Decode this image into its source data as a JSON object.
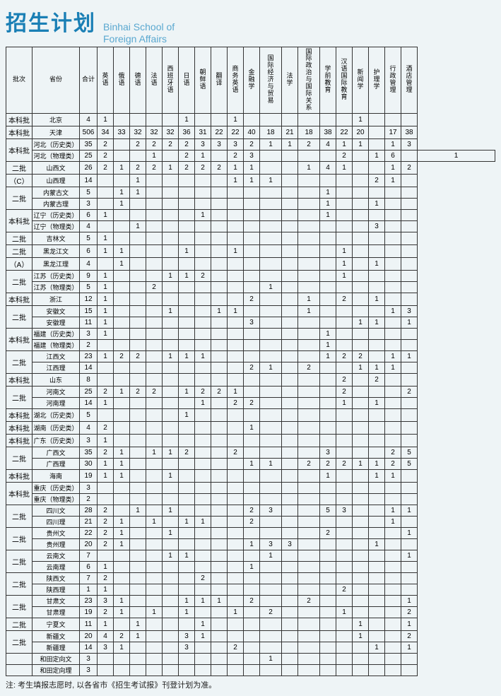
{
  "title_cn": "招生计划",
  "title_en_line1": "Binhai School of",
  "title_en_line2": "Foreign Affairs",
  "footnote": "注: 考生填报志愿时, 以各省市《招生考试报》刊登计划为准。",
  "columns": [
    {
      "key": "batch",
      "label": "批次",
      "cls": "col-batch"
    },
    {
      "key": "prov",
      "label": "省份",
      "cls": "col-prov"
    },
    {
      "key": "total",
      "label": "合计",
      "cls": "col-total"
    },
    {
      "key": "m0",
      "label": "英语",
      "cls": "col-major"
    },
    {
      "key": "m1",
      "label": "俄语",
      "cls": "col-major"
    },
    {
      "key": "m2",
      "label": "德语",
      "cls": "col-major"
    },
    {
      "key": "m3",
      "label": "法语",
      "cls": "col-major"
    },
    {
      "key": "m4",
      "label": "西班牙语",
      "cls": "col-major"
    },
    {
      "key": "m5",
      "label": "日语",
      "cls": "col-major"
    },
    {
      "key": "m6",
      "label": "朝鲜语",
      "cls": "col-major"
    },
    {
      "key": "m7",
      "label": "翻译",
      "cls": "col-major"
    },
    {
      "key": "m8",
      "label": "商务英语",
      "cls": "col-major"
    },
    {
      "key": "m9",
      "label": "金融学",
      "cls": "col-major"
    },
    {
      "key": "m10",
      "label": "国际经济与贸易",
      "cls": "col-major-wide"
    },
    {
      "key": "m11",
      "label": "法学",
      "cls": "col-major"
    },
    {
      "key": "m12",
      "label": "国际政治与国际关系",
      "cls": "col-major-wide"
    },
    {
      "key": "m13",
      "label": "学前教育",
      "cls": "col-major"
    },
    {
      "key": "m14",
      "label": "汉语国际教育",
      "cls": "col-major"
    },
    {
      "key": "m15",
      "label": "新闻学",
      "cls": "col-major"
    },
    {
      "key": "m16",
      "label": "护理学",
      "cls": "col-major"
    },
    {
      "key": "m17",
      "label": "行政管理",
      "cls": "col-major"
    },
    {
      "key": "m18",
      "label": "酒店管理",
      "cls": "col-major"
    }
  ],
  "rows": [
    {
      "batch": "本科批",
      "prov": "北京",
      "total": "4",
      "v": [
        "1",
        "",
        "",
        "",
        "",
        "1",
        "",
        "",
        "1",
        "",
        "",
        "",
        "",
        "",
        "",
        "1",
        "",
        "",
        ""
      ]
    },
    {
      "batch": "本科批",
      "prov": "天津",
      "total": "506",
      "v": [
        "34",
        "33",
        "32",
        "32",
        "32",
        "36",
        "31",
        "22",
        "22",
        "40",
        "18",
        "21",
        "18",
        "38",
        "22",
        "20",
        "",
        "17",
        "38"
      ]
    },
    {
      "batch": "本科批",
      "batch_rs": 2,
      "prov": "河北（历史类）",
      "total": "35",
      "v": [
        "2",
        "",
        "2",
        "2",
        "2",
        "2",
        "3",
        "3",
        "3",
        "2",
        "1",
        "1",
        "2",
        "4",
        "1",
        "1",
        "",
        "1",
        "3"
      ]
    },
    {
      "prov": "河北（物理类）",
      "total": "25",
      "v": [
        "2",
        "",
        "",
        "1",
        "",
        "2",
        "1",
        "",
        "2",
        "3",
        "",
        "",
        "",
        "",
        "2",
        "",
        "1",
        "6",
        "",
        "1"
      ]
    },
    {
      "batch": "二批",
      "batch_rs": 2,
      "prov": "山西文",
      "total": "26",
      "v": [
        "2",
        "1",
        "2",
        "2",
        "1",
        "2",
        "2",
        "2",
        "1",
        "1",
        "",
        "",
        "1",
        "4",
        "1",
        "",
        "",
        "1",
        "2"
      ]
    },
    {
      "batch2": "（C）",
      "prov": "山西理",
      "total": "14",
      "v": [
        "",
        "",
        "1",
        "",
        "",
        "",
        "",
        "",
        "1",
        "1",
        "1",
        "",
        "",
        "",
        "",
        "",
        "2",
        "1",
        ""
      ]
    },
    {
      "batch": "二批",
      "batch_rs": 2,
      "prov": "内蒙古文",
      "total": "5",
      "v": [
        "",
        "1",
        "1",
        "",
        "",
        "",
        "",
        "",
        "",
        "",
        "",
        "",
        "",
        "1",
        "",
        "",
        "",
        "",
        ""
      ]
    },
    {
      "prov": "内蒙古理",
      "total": "3",
      "v": [
        "",
        "1",
        "",
        "",
        "",
        "",
        "",
        "",
        "",
        "",
        "",
        "",
        "",
        "1",
        "",
        "",
        "1",
        "",
        ""
      ]
    },
    {
      "batch": "本科批",
      "batch_rs": 2,
      "prov": "辽宁（历史类）",
      "total": "6",
      "v": [
        "1",
        "",
        "",
        "",
        "",
        "",
        "1",
        "",
        "",
        "",
        "",
        "",
        "",
        "1",
        "",
        "",
        "",
        "",
        ""
      ]
    },
    {
      "prov": "辽宁（物理类）",
      "total": "4",
      "v": [
        "",
        "",
        "1",
        "",
        "",
        "",
        "",
        "",
        "",
        "",
        "",
        "",
        "",
        "",
        "",
        "",
        "3",
        "",
        ""
      ]
    },
    {
      "batch": "二批",
      "prov": "吉林文",
      "total": "5",
      "v": [
        "1",
        "",
        "",
        "",
        "",
        "",
        "",
        "",
        "",
        "",
        "",
        "",
        "",
        "",
        "",
        "",
        "",
        "",
        ""
      ]
    },
    {
      "batch": "二批",
      "batch_rs": 2,
      "prov": "黑龙江文",
      "total": "6",
      "v": [
        "1",
        "1",
        "",
        "",
        "",
        "1",
        "",
        "",
        "1",
        "",
        "",
        "",
        "",
        "",
        "1",
        "",
        "",
        "",
        ""
      ]
    },
    {
      "batch2": "（A）",
      "prov": "黑龙江理",
      "total": "4",
      "v": [
        "",
        "1",
        "",
        "",
        "",
        "",
        "",
        "",
        "",
        "",
        "",
        "",
        "",
        "",
        "1",
        "",
        "1",
        "",
        ""
      ]
    },
    {
      "batch": "二批",
      "batch_rs": 2,
      "prov": "江苏（历史类）",
      "total": "9",
      "v": [
        "1",
        "",
        "",
        "",
        "1",
        "1",
        "2",
        "",
        "",
        "",
        "",
        "",
        "",
        "",
        "1",
        "",
        "",
        "",
        ""
      ]
    },
    {
      "prov": "江苏（物理类）",
      "total": "5",
      "v": [
        "1",
        "",
        "",
        "2",
        "",
        "",
        "",
        "",
        "",
        "",
        "1",
        "",
        "",
        "",
        "",
        "",
        "",
        "",
        ""
      ]
    },
    {
      "batch": "本科批",
      "prov": "浙江",
      "total": "12",
      "v": [
        "1",
        "",
        "",
        "",
        "",
        "",
        "",
        "",
        "",
        "2",
        "",
        "",
        "1",
        "",
        "2",
        "",
        "1",
        "",
        ""
      ]
    },
    {
      "batch": "二批",
      "batch_rs": 2,
      "prov": "安徽文",
      "total": "15",
      "v": [
        "1",
        "",
        "",
        "",
        "1",
        "",
        "",
        "1",
        "1",
        "",
        "",
        "",
        "1",
        "",
        "",
        "",
        "",
        "1",
        "3"
      ]
    },
    {
      "prov": "安徽理",
      "total": "11",
      "v": [
        "1",
        "",
        "",
        "",
        "",
        "",
        "",
        "",
        "",
        "3",
        "",
        "",
        "",
        "",
        "",
        "1",
        "1",
        "",
        "1"
      ]
    },
    {
      "batch": "本科批",
      "batch_rs": 2,
      "prov": "福建（历史类）",
      "total": "3",
      "v": [
        "1",
        "",
        "",
        "",
        "",
        "",
        "",
        "",
        "",
        "",
        "",
        "",
        "",
        "1",
        "",
        "",
        "",
        "",
        ""
      ]
    },
    {
      "prov": "福建（物理类）",
      "total": "2",
      "v": [
        "",
        "",
        "",
        "",
        "",
        "",
        "",
        "",
        "",
        "",
        "",
        "",
        "",
        "1",
        "",
        "",
        "",
        "",
        ""
      ]
    },
    {
      "batch": "二批",
      "batch_rs": 2,
      "prov": "江西文",
      "total": "23",
      "v": [
        "1",
        "2",
        "2",
        "",
        "1",
        "1",
        "1",
        "",
        "",
        "",
        "",
        "",
        "",
        "1",
        "2",
        "2",
        "",
        "1",
        "1"
      ]
    },
    {
      "prov": "江西理",
      "total": "14",
      "v": [
        "",
        "",
        "",
        "",
        "",
        "",
        "",
        "",
        "",
        "2",
        "1",
        "",
        "2",
        "",
        "",
        "1",
        "1",
        "1",
        ""
      ]
    },
    {
      "batch": "本科批",
      "prov": "山东",
      "total": "8",
      "v": [
        "",
        "",
        "",
        "",
        "",
        "",
        "",
        "",
        "",
        "",
        "",
        "",
        "",
        "",
        "2",
        "",
        "2",
        "",
        ""
      ]
    },
    {
      "batch": "二批",
      "batch_rs": 2,
      "prov": "河南文",
      "total": "25",
      "v": [
        "2",
        "1",
        "2",
        "2",
        "",
        "1",
        "2",
        "2",
        "1",
        "",
        "",
        "",
        "",
        "",
        "2",
        "",
        "",
        "",
        "2"
      ]
    },
    {
      "prov": "河南理",
      "total": "14",
      "v": [
        "1",
        "",
        "",
        "",
        "",
        "",
        "1",
        "",
        "2",
        "2",
        "",
        "",
        "",
        "",
        "1",
        "",
        "1",
        "",
        ""
      ]
    },
    {
      "batch": "本科批",
      "prov": "湖北（历史类）",
      "total": "5",
      "v": [
        "",
        "",
        "",
        "",
        "",
        "1",
        "",
        "",
        "",
        "",
        "",
        "",
        "",
        "",
        "",
        "",
        "",
        "",
        ""
      ]
    },
    {
      "batch": "本科批",
      "prov": "湖南（历史类）",
      "total": "4",
      "v": [
        "2",
        "",
        "",
        "",
        "",
        "",
        "",
        "",
        "",
        "1",
        "",
        "",
        "",
        "",
        "",
        "",
        "",
        "",
        ""
      ]
    },
    {
      "batch": "本科批",
      "prov": "广东（历史类）",
      "total": "3",
      "v": [
        "1",
        "",
        "",
        "",
        "",
        "",
        "",
        "",
        "",
        "",
        "",
        "",
        "",
        "",
        "",
        "",
        "",
        "",
        ""
      ]
    },
    {
      "batch": "二批",
      "batch_rs": 2,
      "prov": "广西文",
      "total": "35",
      "v": [
        "2",
        "1",
        "",
        "1",
        "1",
        "2",
        "",
        "",
        "2",
        "",
        "",
        "",
        "",
        "3",
        "",
        "",
        "",
        "2",
        "5"
      ]
    },
    {
      "prov": "广西理",
      "total": "30",
      "v": [
        "1",
        "1",
        "",
        "",
        "",
        "",
        "",
        "",
        "",
        "1",
        "1",
        "",
        "2",
        "2",
        "2",
        "1",
        "1",
        "2",
        "5"
      ]
    },
    {
      "batch": "本科批",
      "prov": "海南",
      "total": "19",
      "v": [
        "1",
        "1",
        "",
        "",
        "1",
        "",
        "",
        "",
        "",
        "",
        "",
        "",
        "",
        "1",
        "",
        "",
        "1",
        "1",
        ""
      ]
    },
    {
      "batch": "本科批",
      "batch_rs": 2,
      "prov": "重庆（历史类）",
      "total": "3",
      "v": [
        "",
        "",
        "",
        "",
        "",
        "",
        "",
        "",
        "",
        "",
        "",
        "",
        "",
        "",
        "",
        "",
        "",
        "",
        ""
      ]
    },
    {
      "prov": "重庆（物理类）",
      "total": "2",
      "v": [
        "",
        "",
        "",
        "",
        "",
        "",
        "",
        "",
        "",
        "",
        "",
        "",
        "",
        "",
        "",
        "",
        "",
        "",
        ""
      ]
    },
    {
      "batch": "二批",
      "batch_rs": 2,
      "prov": "四川文",
      "total": "28",
      "v": [
        "2",
        "",
        "1",
        "",
        "1",
        "",
        "",
        "",
        "",
        "2",
        "3",
        "",
        "",
        "5",
        "3",
        "",
        "",
        "1",
        "1"
      ]
    },
    {
      "prov": "四川理",
      "total": "21",
      "v": [
        "2",
        "1",
        "",
        "1",
        "",
        "1",
        "1",
        "",
        "",
        "2",
        "",
        "",
        "",
        "",
        "",
        "",
        "",
        "1",
        ""
      ]
    },
    {
      "batch": "二批",
      "batch_rs": 2,
      "prov": "贵州文",
      "total": "22",
      "v": [
        "2",
        "1",
        "",
        "",
        "1",
        "",
        "",
        "",
        "",
        "",
        "",
        "",
        "",
        "2",
        "",
        "",
        "",
        "",
        "1"
      ]
    },
    {
      "prov": "贵州理",
      "total": "20",
      "v": [
        "2",
        "1",
        "",
        "",
        "",
        "",
        "",
        "",
        "",
        "1",
        "3",
        "3",
        "",
        "",
        "",
        "",
        "1",
        "",
        ""
      ]
    },
    {
      "batch": "二批",
      "batch_rs": 2,
      "prov": "云南文",
      "total": "7",
      "v": [
        "",
        "",
        "",
        "",
        "1",
        "1",
        "",
        "",
        "",
        "",
        "1",
        "",
        "",
        "",
        "",
        "",
        "",
        "",
        "1"
      ]
    },
    {
      "prov": "云南理",
      "total": "6",
      "v": [
        "1",
        "",
        "",
        "",
        "",
        "",
        "",
        "",
        "",
        "1",
        "",
        "",
        "",
        "",
        "",
        "",
        "",
        "",
        ""
      ]
    },
    {
      "batch": "二批",
      "batch_rs": 2,
      "prov": "陕西文",
      "total": "7",
      "v": [
        "2",
        "",
        "",
        "",
        "",
        "",
        "2",
        "",
        "",
        "",
        "",
        "",
        "",
        "",
        "",
        "",
        "",
        "",
        ""
      ]
    },
    {
      "prov": "陕西理",
      "total": "1",
      "v": [
        "1",
        "",
        "",
        "",
        "",
        "",
        "",
        "",
        "",
        "",
        "",
        "",
        "",
        "",
        "2",
        "",
        "",
        "",
        ""
      ]
    },
    {
      "batch": "二批",
      "batch_rs": 2,
      "prov": "甘肃文",
      "total": "23",
      "v": [
        "3",
        "1",
        "",
        "",
        "",
        "1",
        "1",
        "1",
        "",
        "2",
        "",
        "",
        "2",
        "",
        "",
        "",
        "",
        "",
        "1"
      ]
    },
    {
      "prov": "甘肃理",
      "total": "19",
      "v": [
        "2",
        "1",
        "",
        "1",
        "",
        "1",
        "",
        "",
        "1",
        "",
        "2",
        "",
        "",
        "",
        "1",
        "",
        "",
        "",
        "2"
      ]
    },
    {
      "batch": "二批",
      "prov": "宁夏文",
      "total": "11",
      "v": [
        "1",
        "",
        "1",
        "",
        "",
        "",
        "1",
        "",
        "",
        "",
        "",
        "",
        "",
        "",
        "",
        "1",
        "",
        "",
        "1"
      ]
    },
    {
      "batch": "二批",
      "batch_rs": 2,
      "prov": "新疆文",
      "total": "20",
      "v": [
        "4",
        "2",
        "1",
        "",
        "",
        "3",
        "1",
        "",
        "",
        "",
        "",
        "",
        "",
        "",
        "",
        "1",
        "",
        "",
        "2"
      ]
    },
    {
      "prov": "新疆理",
      "total": "14",
      "v": [
        "3",
        "1",
        "",
        "",
        "",
        "3",
        "",
        "",
        "2",
        "",
        "",
        "",
        "",
        "",
        "",
        "",
        "1",
        "",
        "1"
      ]
    },
    {
      "batch": "",
      "prov": "和田定向文",
      "total": "3",
      "v": [
        "",
        "",
        "",
        "",
        "",
        "",
        "",
        "",
        "",
        "",
        "1",
        "",
        "",
        "",
        "",
        "",
        "",
        "",
        ""
      ]
    },
    {
      "batch": "",
      "prov": "和田定向理",
      "total": "3",
      "v": [
        "",
        "",
        "",
        "",
        "",
        "",
        "",
        "",
        "",
        "",
        "",
        "",
        "",
        "",
        "",
        "",
        "",
        "",
        ""
      ]
    }
  ]
}
